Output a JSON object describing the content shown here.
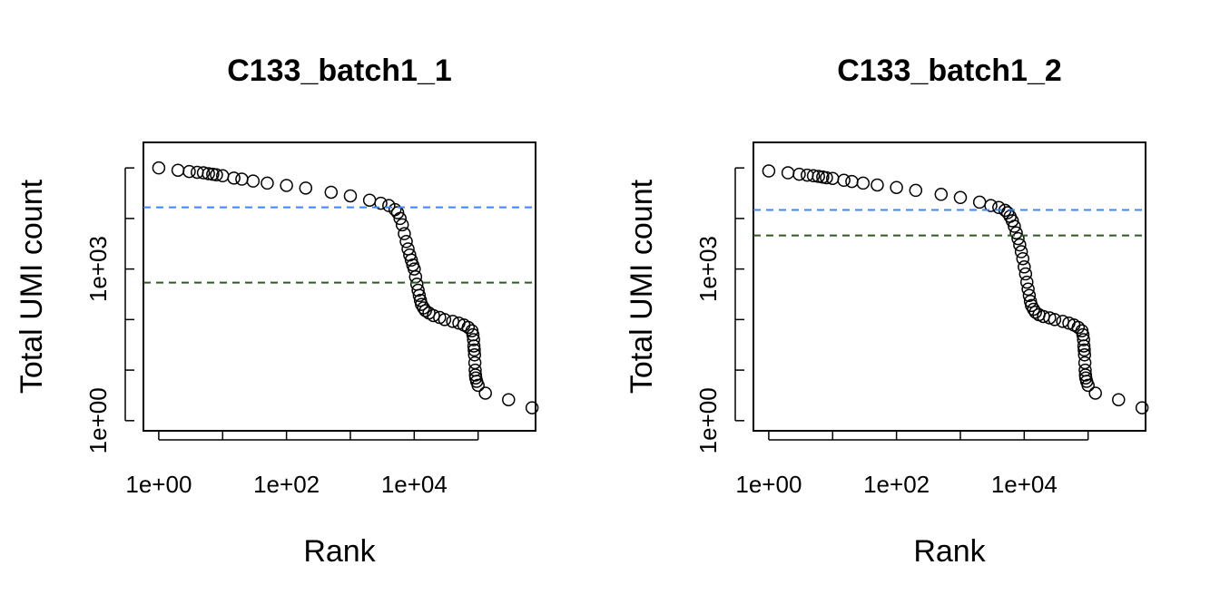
{
  "chart_data": [
    {
      "type": "scatter",
      "title": "C133_batch1_1",
      "x_label": "Rank",
      "y_label": "Total UMI count",
      "log_x": true,
      "log_y": true,
      "xlim": [
        0.575,
        794000
      ],
      "ylim": [
        0.63,
        320000
      ],
      "xticks": [
        {
          "value": 1,
          "label": "1e+00"
        },
        {
          "value": 100,
          "label": "1e+02"
        },
        {
          "value": 10000,
          "label": "1e+04"
        }
      ],
      "xticks_minor": [
        10,
        1000,
        100000
      ],
      "yticks": [
        {
          "value": 1,
          "label": "1e+00"
        },
        {
          "value": 1000,
          "label": "1e+03"
        }
      ],
      "yticks_minor": [
        10,
        100,
        10000,
        100000
      ],
      "hlines": [
        {
          "value": 16600,
          "color": "#3a86ff"
        },
        {
          "value": 537,
          "color": "#2d5a1f"
        }
      ],
      "color": "#000000",
      "x": [
        1,
        2,
        3,
        4,
        5,
        6,
        7,
        8,
        10,
        15,
        20,
        30,
        50,
        100,
        200,
        500,
        1000,
        2000,
        3000,
        4000,
        5000,
        5500,
        6000,
        6500,
        7000,
        7500,
        8000,
        8500,
        9000,
        9500,
        10000,
        10500,
        11000,
        11500,
        12000,
        12500,
        13000,
        14000,
        15000,
        17000,
        20000,
        25000,
        30000,
        40000,
        50000,
        60000,
        70000,
        80000,
        83000,
        85000,
        86000,
        87000,
        88000,
        89000,
        90000,
        91000,
        92000,
        95000,
        100000,
        130000,
        300000,
        700000
      ],
      "y": [
        100000,
        90000,
        85000,
        82000,
        80000,
        77000,
        75000,
        73000,
        70000,
        63000,
        60000,
        55000,
        50000,
        45000,
        40000,
        33000,
        28000,
        23000,
        20000,
        18000,
        15000,
        13000,
        10000,
        7500,
        5000,
        3500,
        2500,
        1900,
        1500,
        1200,
        1000,
        700,
        500,
        380,
        300,
        240,
        200,
        170,
        150,
        135,
        120,
        110,
        100,
        92,
        85,
        78,
        70,
        60,
        50,
        40,
        30,
        25,
        20,
        14,
        10,
        8,
        7,
        6,
        5,
        3.5,
        2.6,
        1.8
      ]
    },
    {
      "type": "scatter",
      "title": "C133_batch1_2",
      "x_label": "Rank",
      "y_label": "Total UMI count",
      "log_x": true,
      "log_y": true,
      "xlim": [
        0.575,
        794000
      ],
      "ylim": [
        0.63,
        320000
      ],
      "xticks": [
        {
          "value": 1,
          "label": "1e+00"
        },
        {
          "value": 100,
          "label": "1e+02"
        },
        {
          "value": 10000,
          "label": "1e+04"
        }
      ],
      "xticks_minor": [
        10,
        1000,
        100000
      ],
      "yticks": [
        {
          "value": 1,
          "label": "1e+00"
        },
        {
          "value": 1000,
          "label": "1e+03"
        }
      ],
      "yticks_minor": [
        10,
        100,
        10000,
        100000
      ],
      "hlines": [
        {
          "value": 14700,
          "color": "#3a86ff"
        },
        {
          "value": 4600,
          "color": "#2d5a1f"
        }
      ],
      "color": "#000000",
      "x": [
        1,
        2,
        3,
        4,
        5,
        6,
        7,
        8,
        10,
        15,
        20,
        30,
        50,
        100,
        200,
        500,
        1000,
        2000,
        3000,
        4000,
        5000,
        5500,
        6000,
        6500,
        7000,
        7500,
        8000,
        8500,
        9000,
        9500,
        10000,
        10500,
        11000,
        11500,
        12000,
        12500,
        13000,
        14000,
        15000,
        17000,
        20000,
        25000,
        30000,
        40000,
        50000,
        60000,
        70000,
        80000,
        83000,
        85000,
        86000,
        87000,
        88000,
        89000,
        90000,
        91000,
        92000,
        95000,
        100000,
        130000,
        300000,
        700000
      ],
      "y": [
        87000,
        80000,
        75000,
        72000,
        70000,
        68000,
        66000,
        64000,
        62000,
        57000,
        54000,
        50000,
        46000,
        41000,
        36000,
        30000,
        26000,
        21000,
        18000,
        16500,
        14500,
        13000,
        11000,
        9000,
        7000,
        5200,
        4000,
        3000,
        2200,
        1600,
        1100,
        800,
        550,
        400,
        300,
        230,
        190,
        160,
        140,
        125,
        115,
        108,
        100,
        92,
        85,
        78,
        70,
        60,
        50,
        40,
        30,
        25,
        20,
        14,
        10,
        8,
        7,
        6,
        5,
        3.5,
        2.6,
        1.8
      ]
    }
  ]
}
